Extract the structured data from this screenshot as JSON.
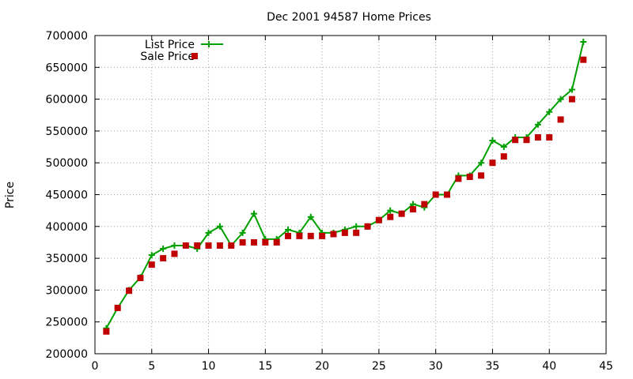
{
  "chart_data": {
    "type": "line",
    "title": "Dec 2001 94587 Home Prices",
    "xlabel": "",
    "ylabel": "Price",
    "xlim": [
      0,
      45
    ],
    "ylim": [
      200000,
      700000
    ],
    "xticks": [
      0,
      5,
      10,
      15,
      20,
      25,
      30,
      35,
      40,
      45
    ],
    "yticks": [
      200000,
      250000,
      300000,
      350000,
      400000,
      450000,
      500000,
      550000,
      600000,
      650000,
      700000
    ],
    "grid": true,
    "legend_position": "top-left",
    "series": [
      {
        "name": "List Price",
        "style": "linespoints",
        "marker": "plus",
        "color": "#00a000",
        "x": [
          1,
          2,
          3,
          4,
          5,
          6,
          7,
          8,
          9,
          10,
          11,
          12,
          13,
          14,
          15,
          16,
          17,
          18,
          19,
          20,
          21,
          22,
          23,
          24,
          25,
          26,
          27,
          28,
          29,
          30,
          31,
          32,
          33,
          34,
          35,
          36,
          37,
          38,
          39,
          40,
          41,
          42,
          43
        ],
        "y": [
          240000,
          272000,
          300000,
          320000,
          355000,
          365000,
          370000,
          370000,
          365000,
          390000,
          400000,
          370000,
          390000,
          420000,
          380000,
          380000,
          395000,
          390000,
          415000,
          390000,
          390000,
          395000,
          400000,
          400000,
          410000,
          425000,
          420000,
          435000,
          430000,
          450000,
          450000,
          480000,
          480000,
          500000,
          535000,
          525000,
          540000,
          540000,
          560000,
          580000,
          600000,
          615000,
          690000
        ]
      },
      {
        "name": "Sale Price",
        "style": "points",
        "marker": "square",
        "color": "#c00000",
        "x": [
          1,
          2,
          3,
          4,
          5,
          6,
          7,
          8,
          9,
          10,
          11,
          12,
          13,
          14,
          15,
          16,
          17,
          18,
          19,
          20,
          21,
          22,
          23,
          24,
          25,
          26,
          27,
          28,
          29,
          30,
          31,
          32,
          33,
          34,
          35,
          36,
          37,
          38,
          39,
          40,
          41,
          42,
          43
        ],
        "y": [
          235000,
          272000,
          299000,
          319000,
          340000,
          350000,
          357000,
          370000,
          370000,
          370000,
          370000,
          370000,
          375000,
          375000,
          375000,
          375000,
          385000,
          385000,
          385000,
          385000,
          388000,
          390000,
          390000,
          400000,
          410000,
          415000,
          420000,
          427000,
          435000,
          450000,
          450000,
          475000,
          478000,
          480000,
          500000,
          510000,
          536000,
          536000,
          540000,
          540000,
          568000,
          600000,
          662000
        ]
      }
    ]
  }
}
